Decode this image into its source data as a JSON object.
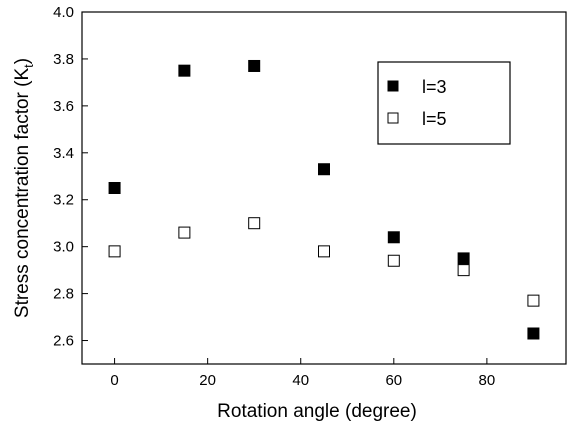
{
  "chart_data": {
    "type": "scatter",
    "xlabel": "Rotation angle (degree)",
    "ylabel_main": "Stress concentration factor (K",
    "ylabel_sub": "t",
    "ylabel_close": ")",
    "xlim": [
      -7,
      97
    ],
    "ylim": [
      2.5,
      4.0
    ],
    "x_ticks": [
      0,
      20,
      40,
      60,
      80
    ],
    "y_ticks": [
      2.6,
      2.8,
      3.0,
      3.2,
      3.4,
      3.6,
      3.8,
      4.0
    ],
    "x_tick_labels": [
      "0",
      "20",
      "40",
      "60",
      "80"
    ],
    "y_tick_labels": [
      "2.6",
      "2.8",
      "3.0",
      "3.2",
      "3.4",
      "3.6",
      "3.8",
      "4.0"
    ],
    "legend_position": "top-right",
    "series": [
      {
        "name": "l=3",
        "marker": "filled-square",
        "color": "#000000",
        "x": [
          0,
          15,
          30,
          45,
          60,
          75,
          90
        ],
        "y": [
          3.25,
          3.75,
          3.77,
          3.33,
          3.04,
          2.95,
          2.63
        ]
      },
      {
        "name": "l=5",
        "marker": "open-square",
        "color": "#000000",
        "x": [
          0,
          15,
          30,
          45,
          60,
          75,
          90
        ],
        "y": [
          2.98,
          3.06,
          3.1,
          2.98,
          2.94,
          2.9,
          2.77
        ]
      }
    ]
  }
}
